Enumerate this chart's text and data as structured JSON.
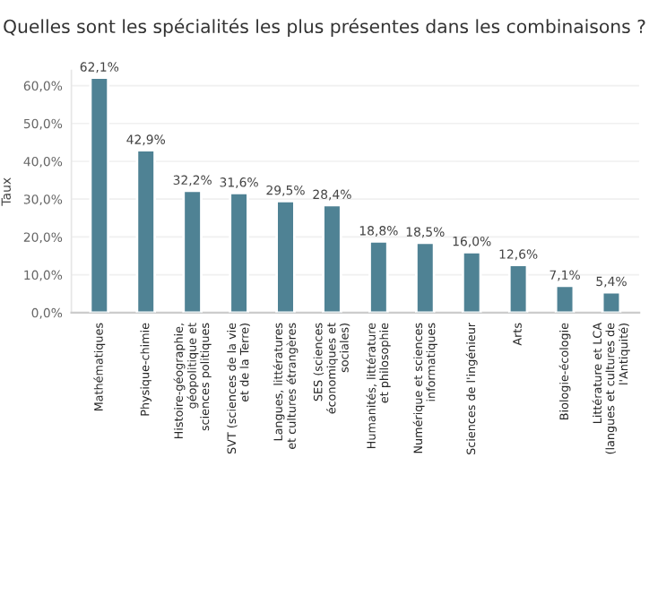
{
  "chart_data": {
    "type": "bar",
    "title": "Quelles sont les spécialités les plus présentes dans les combinaisons ?",
    "ylabel": "Taux",
    "categories": [
      "Mathématiques",
      "Physique-chimie",
      "Histoire-géographie,\ngéopolitique et\nsciences politiques",
      "SVT (sciences de la vie\net de la Terre)",
      "Langues, littératures\net cultures étrangères",
      "SES (sciences\néconomiques et\nsociales)",
      "Humanités, littérature\net philosophie",
      "Numérique et sciences\ninformatiques",
      "Sciences de l'ingénieur",
      "Arts",
      "Biologie-écologie",
      "Littérature et LCA\n(langues et cultures de\nl'Antiquité)"
    ],
    "values": [
      62.1,
      42.9,
      32.2,
      31.6,
      29.5,
      28.4,
      18.8,
      18.5,
      16.0,
      12.6,
      7.1,
      5.4
    ],
    "value_labels": [
      "62,1%",
      "42,9%",
      "32,2%",
      "31,6%",
      "29,5%",
      "28,4%",
      "18,8%",
      "18,5%",
      "16,0%",
      "12,6%",
      "7,1%",
      "5,4%"
    ],
    "color": "#4f8294",
    "ylim": [
      0,
      64
    ],
    "yticks": [
      {
        "value": 0,
        "label": "0,0%"
      },
      {
        "value": 10,
        "label": "10,0%"
      },
      {
        "value": 20,
        "label": "20,0%"
      },
      {
        "value": 30,
        "label": "30,0%"
      },
      {
        "value": 40,
        "label": "40,0%"
      },
      {
        "value": 50,
        "label": "50,0%"
      },
      {
        "value": 60,
        "label": "60,0%"
      }
    ],
    "grid": "y"
  }
}
